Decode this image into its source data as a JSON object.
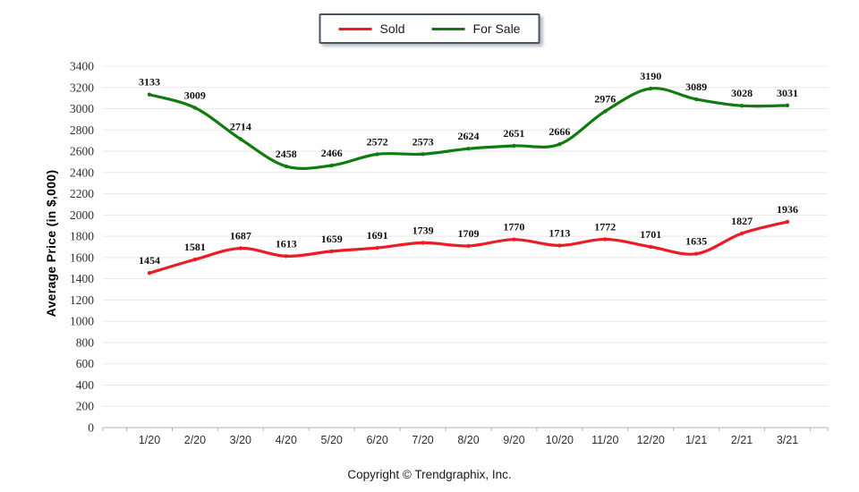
{
  "legend": {
    "items": [
      {
        "label": "Sold",
        "color": "#ED1C24"
      },
      {
        "label": "For Sale",
        "color": "#107C10"
      }
    ]
  },
  "y_axis_title": "Average Price  (in $,000)",
  "footer": {
    "copyright": "Copyright © Trendgraphix, Inc."
  },
  "chart_data": {
    "type": "line",
    "title": "",
    "xlabel": "",
    "ylabel": "Average Price (in $,000)",
    "categories": [
      "1/20",
      "2/20",
      "3/20",
      "4/20",
      "5/20",
      "6/20",
      "7/20",
      "8/20",
      "9/20",
      "10/20",
      "11/20",
      "12/20",
      "1/21",
      "2/21",
      "3/21"
    ],
    "series": [
      {
        "name": "Sold",
        "color": "#ED1C24",
        "values": [
          1454,
          1581,
          1687,
          1613,
          1659,
          1691,
          1739,
          1709,
          1770,
          1713,
          1772,
          1701,
          1635,
          1827,
          1936
        ]
      },
      {
        "name": "For Sale",
        "color": "#107C10",
        "values": [
          3133,
          3009,
          2714,
          2458,
          2466,
          2572,
          2573,
          2624,
          2651,
          2666,
          2976,
          3190,
          3089,
          3028,
          3031
        ]
      }
    ],
    "ylim": [
      0,
      3400
    ],
    "ytick_step": 200,
    "grid": true,
    "smooth": true,
    "data_labels": true,
    "legend_position": "top-center",
    "colors": {
      "gridline": "#e8e8e8",
      "axis_line": "#b3b3b3",
      "tick_label": "#303030",
      "data_label": "#101010"
    }
  }
}
